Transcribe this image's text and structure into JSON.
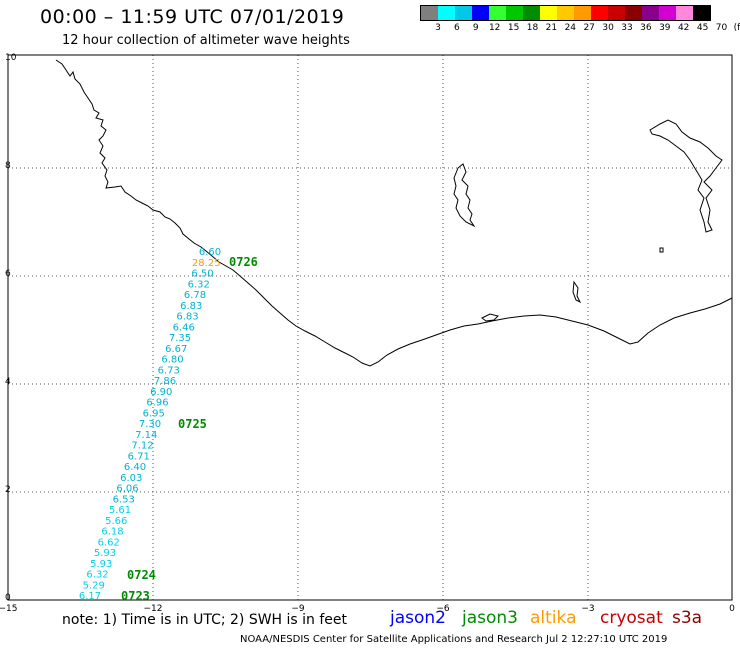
{
  "title": "00:00 – 11:59 UTC 07/01/2019",
  "subtitle": "12 hour collection of altimeter wave heights",
  "scale": {
    "labels": [
      "3",
      "6",
      "9",
      "12",
      "15",
      "18",
      "21",
      "24",
      "27",
      "30",
      "33",
      "36",
      "39",
      "42",
      "45",
      "70",
      "(ft)"
    ],
    "colors": [
      "#7f7f7f",
      "#00ffff",
      "#00c8e6",
      "#0000ff",
      "#33ff33",
      "#00c800",
      "#008c00",
      "#ffff00",
      "#ffc800",
      "#ff9b00",
      "#ff0000",
      "#c80000",
      "#8b0000",
      "#8b008b",
      "#d200d2",
      "#ff88dd",
      "#000000"
    ]
  },
  "axes": {
    "x_ticks": [
      "−15",
      "−12",
      "−9",
      "−6",
      "−3",
      "0"
    ],
    "y_ticks": [
      "0",
      "2",
      "4",
      "6",
      "8",
      "10"
    ]
  },
  "swh_values": [
    "6.60",
    "28.25",
    "6.50",
    "6.32",
    "6.78",
    "6.83",
    "6.83",
    "6.46",
    "7.35",
    "6.67",
    "6.80",
    "6.73",
    "7.86",
    "6.90",
    "6.96",
    "6.95",
    "7.30",
    "7.14",
    "7.12",
    "6.71",
    "6.40",
    "6.03",
    "6.06",
    "6.53",
    "5.61",
    "5.66",
    "6.18",
    "6.62",
    "5.93",
    "5.93",
    "6.32",
    "5.29",
    "6.17"
  ],
  "swh_colors": [
    "#00b4d2",
    "#ff9b00",
    "#00b4d2",
    "#00b4d2",
    "#00b4d2",
    "#00b4d2",
    "#00b4d2",
    "#00b4d2",
    "#00b4d2",
    "#00b4d2",
    "#00b4d2",
    "#00b4d2",
    "#00b4d2",
    "#00b4d2",
    "#00b4d2",
    "#00b4d2",
    "#00b4d2",
    "#00b4d2",
    "#00b4d2",
    "#00b4d2",
    "#00b4d2",
    "#00b4d2",
    "#00b4d2",
    "#00b4d2",
    "#00d2e6",
    "#00d2e6",
    "#00d2e6",
    "#00d2e6",
    "#00d2e6",
    "#00d2e6",
    "#00d2e6",
    "#00d2e6",
    "#00d2e6"
  ],
  "pass_times": [
    "0726",
    "0725",
    "0724",
    "0723"
  ],
  "pass_color": "#008c00",
  "note": "note:  1) Time is in UTC; 2) SWH is in feet",
  "legend": [
    {
      "label": "jason2",
      "color": "#0000ff"
    },
    {
      "label": "jason3",
      "color": "#008c00"
    },
    {
      "label": "altika",
      "color": "#ff9b00"
    },
    {
      "label": "cryosat",
      "color": "#c80000"
    },
    {
      "label": "s3a",
      "color": "#8b0000"
    }
  ],
  "credit": "NOAA/NESDIS Center for Satellite Applications and Research    Jul  2 12:27:10 UTC 2019"
}
